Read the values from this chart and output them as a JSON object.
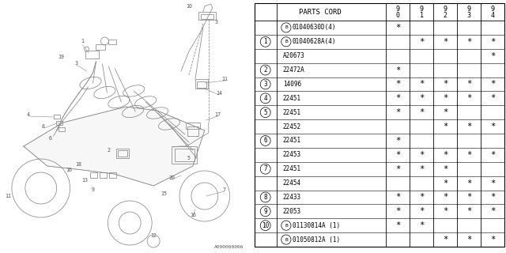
{
  "rows": [
    {
      "ref": "",
      "part": "B01040630D(4)",
      "marks": [
        "*",
        "",
        "",
        "",
        ""
      ]
    },
    {
      "ref": "1",
      "part": "B01040628A(4)",
      "marks": [
        "",
        "*",
        "*",
        "*",
        "*"
      ]
    },
    {
      "ref": "",
      "part": "A20673",
      "marks": [
        "",
        "",
        "",
        "",
        "*"
      ]
    },
    {
      "ref": "2",
      "part": "22472A",
      "marks": [
        "*",
        "",
        "",
        "",
        ""
      ]
    },
    {
      "ref": "3",
      "part": "14096",
      "marks": [
        "*",
        "*",
        "*",
        "*",
        "*"
      ]
    },
    {
      "ref": "4",
      "part": "22451",
      "marks": [
        "*",
        "*",
        "*",
        "*",
        "*"
      ]
    },
    {
      "ref": "5",
      "part": "22451",
      "marks": [
        "*",
        "*",
        "*",
        "",
        ""
      ]
    },
    {
      "ref": "",
      "part": "22452",
      "marks": [
        "",
        "",
        "*",
        "*",
        "*"
      ]
    },
    {
      "ref": "6",
      "part": "22451",
      "marks": [
        "*",
        "",
        "",
        "",
        ""
      ]
    },
    {
      "ref": "",
      "part": "22453",
      "marks": [
        "*",
        "*",
        "*",
        "*",
        "*"
      ]
    },
    {
      "ref": "7",
      "part": "22451",
      "marks": [
        "*",
        "*",
        "*",
        "",
        ""
      ]
    },
    {
      "ref": "",
      "part": "22454",
      "marks": [
        "",
        "",
        "*",
        "*",
        "*"
      ]
    },
    {
      "ref": "8",
      "part": "22433",
      "marks": [
        "*",
        "*",
        "*",
        "*",
        "*"
      ]
    },
    {
      "ref": "9",
      "part": "22053",
      "marks": [
        "*",
        "*",
        "*",
        "*",
        "*"
      ]
    },
    {
      "ref": "10",
      "part": "B01130814A (1)",
      "marks": [
        "*",
        "*",
        "",
        "",
        ""
      ]
    },
    {
      "ref": "",
      "part": "B01050812A (1)",
      "marks": [
        "",
        "",
        "*",
        "*",
        "*"
      ]
    }
  ],
  "diagram_label": "A090000066",
  "bg_color": "#ffffff",
  "year_cols": [
    "9\n0",
    "9\n1",
    "9\n2",
    "9\n3",
    "9\n4"
  ]
}
